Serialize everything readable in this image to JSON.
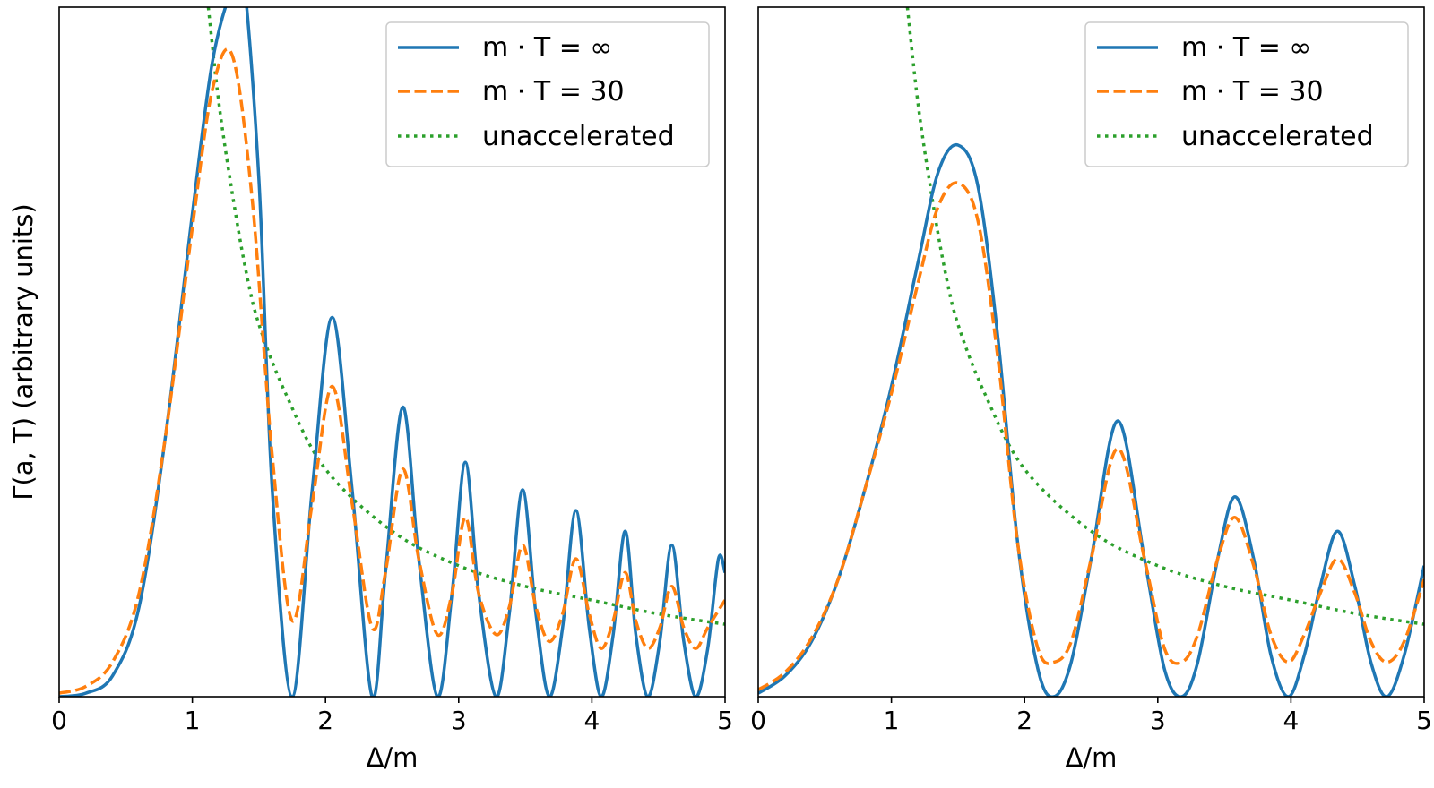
{
  "chart_data": [
    {
      "type": "line",
      "panel": "left",
      "xlabel": "Δ/m",
      "ylabel": "Γ(a, T) (arbitrary units)",
      "xlim": [
        0,
        5
      ],
      "ylim": [
        0,
        1
      ],
      "xticks": [
        "0",
        "1",
        "2",
        "3",
        "4",
        "5"
      ],
      "yticks": [],
      "legend_position": "top-right",
      "series": [
        {
          "name": "m · T = ∞",
          "color": "#1f77b4",
          "style": "solid",
          "x": [
            0,
            0.2,
            0.4,
            0.6,
            0.8,
            1.0,
            1.15,
            1.3,
            1.38,
            1.5,
            1.6,
            1.75,
            1.9,
            2.05,
            2.2,
            2.35,
            2.45,
            2.58,
            2.7,
            2.84,
            2.95,
            3.05,
            3.15,
            3.28,
            3.38,
            3.48,
            3.58,
            3.68,
            3.78,
            3.88,
            3.98,
            4.07,
            4.16,
            4.25,
            4.33,
            4.42,
            4.51,
            4.6,
            4.69,
            4.78,
            4.87,
            4.95,
            5.0
          ],
          "y": [
            0.0,
            0.005,
            0.03,
            0.13,
            0.38,
            0.7,
            0.92,
            1.03,
            1.05,
            0.75,
            0.3,
            0.0,
            0.3,
            0.55,
            0.3,
            0.0,
            0.18,
            0.42,
            0.2,
            0.0,
            0.15,
            0.34,
            0.15,
            0.0,
            0.12,
            0.3,
            0.12,
            0.0,
            0.1,
            0.27,
            0.1,
            0.0,
            0.09,
            0.24,
            0.09,
            0.0,
            0.08,
            0.22,
            0.08,
            0.0,
            0.07,
            0.2,
            0.18
          ]
        },
        {
          "name": "m · T = 30",
          "color": "#ff7f0e",
          "style": "dashed",
          "x": [
            0,
            0.2,
            0.4,
            0.6,
            0.8,
            1.0,
            1.15,
            1.3,
            1.45,
            1.6,
            1.75,
            1.9,
            2.05,
            2.2,
            2.35,
            2.45,
            2.58,
            2.7,
            2.84,
            2.95,
            3.05,
            3.15,
            3.28,
            3.38,
            3.48,
            3.58,
            3.68,
            3.78,
            3.88,
            3.98,
            4.07,
            4.16,
            4.25,
            4.33,
            4.42,
            4.51,
            4.6,
            4.69,
            4.78,
            4.87,
            5.0
          ],
          "y": [
            0.005,
            0.015,
            0.05,
            0.15,
            0.38,
            0.68,
            0.88,
            0.93,
            0.72,
            0.35,
            0.11,
            0.28,
            0.45,
            0.28,
            0.1,
            0.18,
            0.33,
            0.2,
            0.09,
            0.15,
            0.26,
            0.15,
            0.09,
            0.13,
            0.22,
            0.13,
            0.08,
            0.12,
            0.2,
            0.12,
            0.07,
            0.11,
            0.18,
            0.11,
            0.07,
            0.1,
            0.16,
            0.1,
            0.07,
            0.1,
            0.14
          ]
        },
        {
          "name": "unaccelerated",
          "color": "#2ca02c",
          "style": "dotted",
          "x": [
            1.12,
            1.2,
            1.3,
            1.4,
            1.5,
            1.7,
            2.0,
            2.5,
            3.0,
            3.5,
            4.0,
            4.5,
            5.0
          ],
          "y": [
            1.0,
            0.86,
            0.73,
            0.62,
            0.54,
            0.44,
            0.33,
            0.24,
            0.19,
            0.16,
            0.14,
            0.12,
            0.105
          ]
        }
      ]
    },
    {
      "type": "line",
      "panel": "right",
      "xlabel": "Δ/m",
      "ylabel": "",
      "xlim": [
        0,
        5
      ],
      "ylim": [
        0,
        1
      ],
      "xticks": [
        "0",
        "1",
        "2",
        "3",
        "4",
        "5"
      ],
      "yticks": [],
      "legend_position": "top-right",
      "series": [
        {
          "name": "m · T = ∞",
          "color": "#1f77b4",
          "style": "solid",
          "x": [
            0,
            0.2,
            0.4,
            0.6,
            0.8,
            1.0,
            1.2,
            1.35,
            1.5,
            1.65,
            1.8,
            1.95,
            2.1,
            2.22,
            2.35,
            2.5,
            2.7,
            2.9,
            3.05,
            3.18,
            3.3,
            3.45,
            3.58,
            3.72,
            3.85,
            3.98,
            4.1,
            4.22,
            4.35,
            4.48,
            4.6,
            4.72,
            4.85,
            5.0
          ],
          "y": [
            0.005,
            0.03,
            0.08,
            0.17,
            0.3,
            0.45,
            0.63,
            0.76,
            0.8,
            0.74,
            0.52,
            0.22,
            0.04,
            0.0,
            0.05,
            0.2,
            0.4,
            0.2,
            0.04,
            0.0,
            0.05,
            0.2,
            0.29,
            0.2,
            0.06,
            0.0,
            0.06,
            0.16,
            0.24,
            0.16,
            0.05,
            0.0,
            0.06,
            0.19
          ]
        },
        {
          "name": "m · T = 30",
          "color": "#ff7f0e",
          "style": "dashed",
          "x": [
            0,
            0.2,
            0.4,
            0.6,
            0.8,
            1.0,
            1.2,
            1.35,
            1.5,
            1.65,
            1.8,
            1.95,
            2.1,
            2.22,
            2.35,
            2.5,
            2.7,
            2.9,
            3.05,
            3.18,
            3.3,
            3.45,
            3.58,
            3.72,
            3.85,
            3.98,
            4.1,
            4.22,
            4.35,
            4.48,
            4.6,
            4.72,
            4.85,
            5.0
          ],
          "y": [
            0.01,
            0.035,
            0.085,
            0.17,
            0.3,
            0.44,
            0.6,
            0.71,
            0.745,
            0.69,
            0.49,
            0.22,
            0.07,
            0.05,
            0.08,
            0.2,
            0.36,
            0.2,
            0.07,
            0.05,
            0.09,
            0.2,
            0.26,
            0.19,
            0.09,
            0.05,
            0.09,
            0.15,
            0.2,
            0.15,
            0.08,
            0.05,
            0.08,
            0.17
          ]
        },
        {
          "name": "unaccelerated",
          "color": "#2ca02c",
          "style": "dotted",
          "x": [
            1.12,
            1.2,
            1.3,
            1.4,
            1.5,
            1.7,
            2.0,
            2.5,
            3.0,
            3.5,
            4.0,
            4.5,
            5.0
          ],
          "y": [
            1.0,
            0.86,
            0.73,
            0.62,
            0.54,
            0.44,
            0.33,
            0.24,
            0.19,
            0.16,
            0.14,
            0.12,
            0.105
          ]
        }
      ]
    }
  ]
}
